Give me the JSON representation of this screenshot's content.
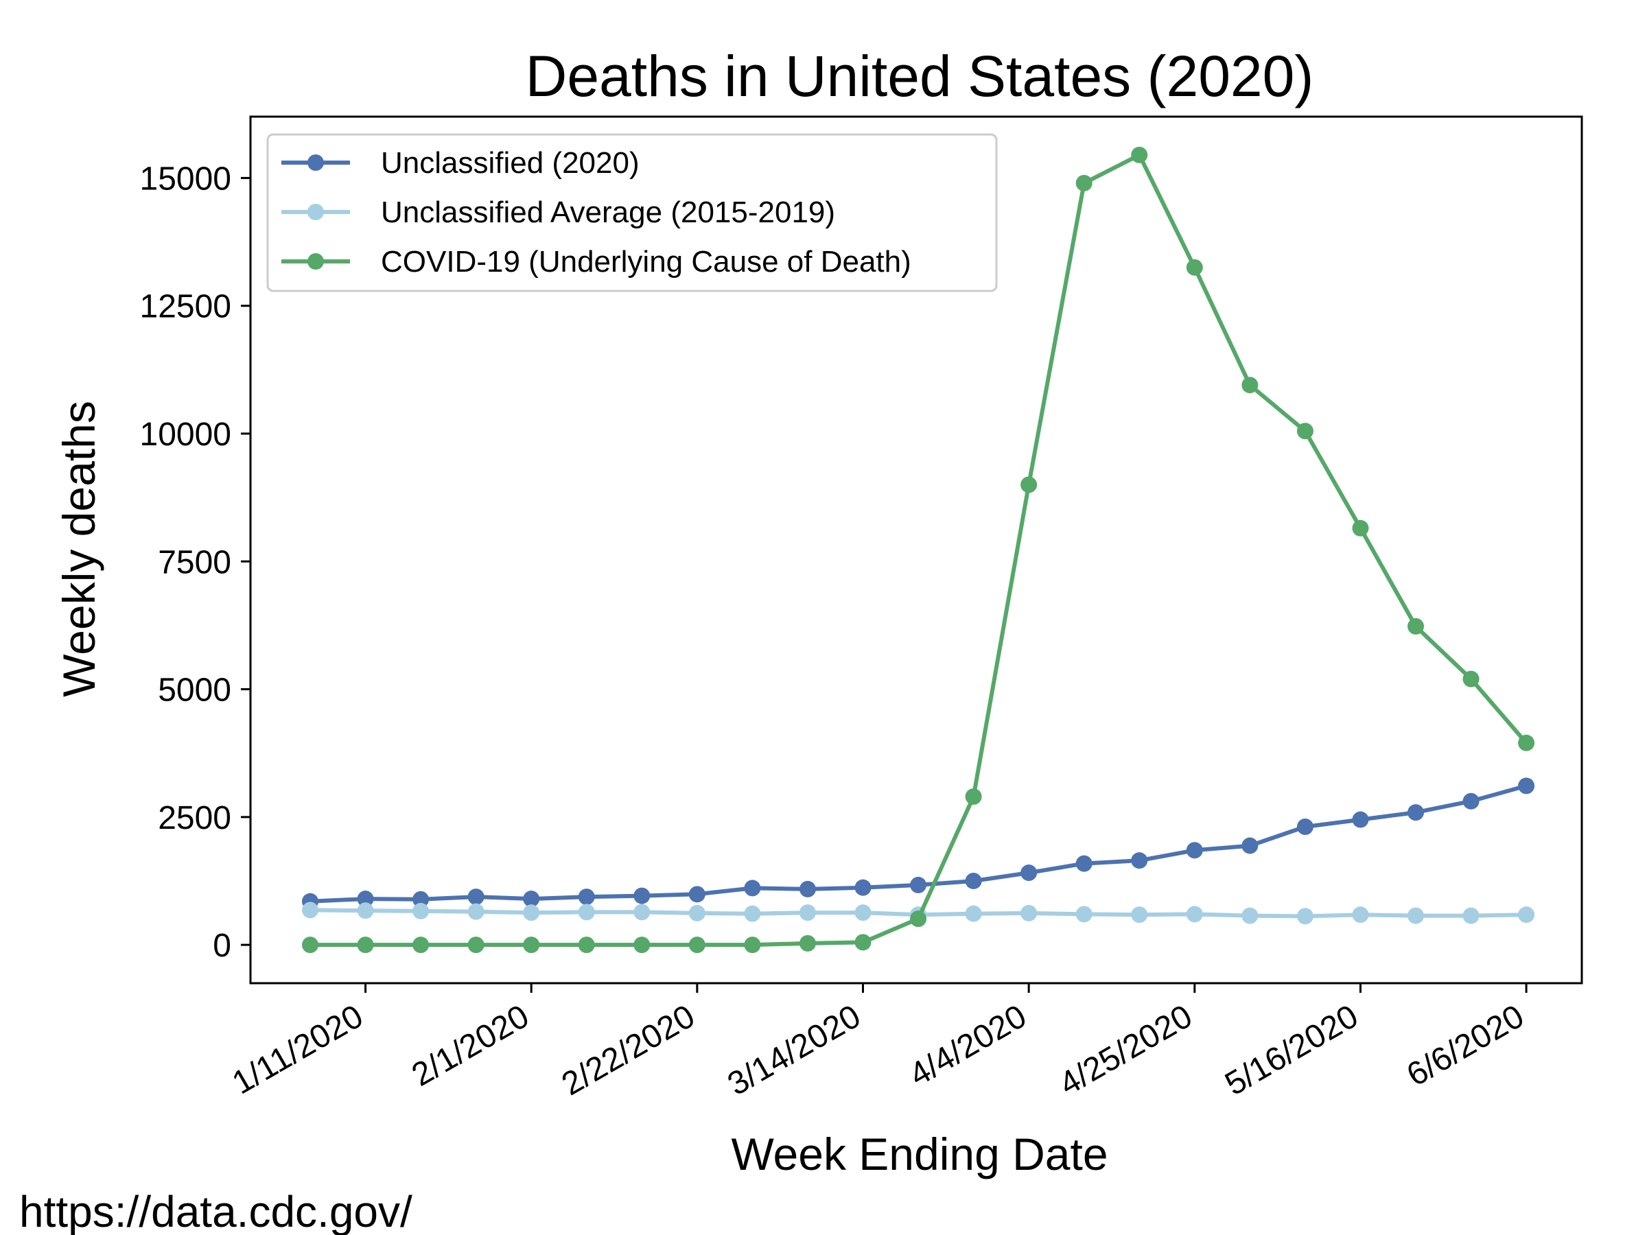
{
  "chart_data": {
    "type": "line",
    "title": "Deaths in United States (2020)",
    "xlabel": "Week Ending Date",
    "ylabel": "Weekly deaths",
    "x": [
      "1/4/2020",
      "1/11/2020",
      "1/18/2020",
      "1/25/2020",
      "2/1/2020",
      "2/8/2020",
      "2/15/2020",
      "2/22/2020",
      "2/29/2020",
      "3/7/2020",
      "3/14/2020",
      "3/21/2020",
      "3/28/2020",
      "4/4/2020",
      "4/11/2020",
      "4/18/2020",
      "4/25/2020",
      "5/2/2020",
      "5/9/2020",
      "5/16/2020",
      "5/23/2020",
      "5/30/2020",
      "6/6/2020"
    ],
    "x_tick_labels": [
      "1/11/2020",
      "2/1/2020",
      "2/22/2020",
      "3/14/2020",
      "4/4/2020",
      "4/25/2020",
      "5/16/2020",
      "6/6/2020"
    ],
    "ylim": [
      -750,
      16200
    ],
    "y_ticks": [
      0,
      2500,
      5000,
      7500,
      10000,
      12500,
      15000
    ],
    "grid": false,
    "legend_position": "top-left",
    "series": [
      {
        "name": "Unclassified (2020)",
        "color": "#4c72b0",
        "values": [
          850,
          900,
          890,
          940,
          900,
          940,
          960,
          990,
          1110,
          1090,
          1120,
          1170,
          1250,
          1410,
          1590,
          1650,
          1850,
          1940,
          2310,
          2450,
          2590,
          2810,
          3110
        ]
      },
      {
        "name": "Unclassified Average (2015-2019)",
        "color": "#a6cee3",
        "values": [
          680,
          670,
          660,
          650,
          630,
          640,
          640,
          620,
          610,
          630,
          630,
          590,
          610,
          620,
          600,
          590,
          600,
          570,
          560,
          590,
          570,
          570,
          590
        ]
      },
      {
        "name": "COVID-19 (Underlying Cause of Death)",
        "color": "#55a868",
        "values": [
          0,
          0,
          0,
          0,
          0,
          0,
          0,
          0,
          0,
          30,
          50,
          510,
          2900,
          9000,
          14900,
          15450,
          13250,
          10950,
          10050,
          8150,
          6230,
          5200,
          3950
        ]
      }
    ]
  },
  "source_text": "https://data.cdc.gov/"
}
